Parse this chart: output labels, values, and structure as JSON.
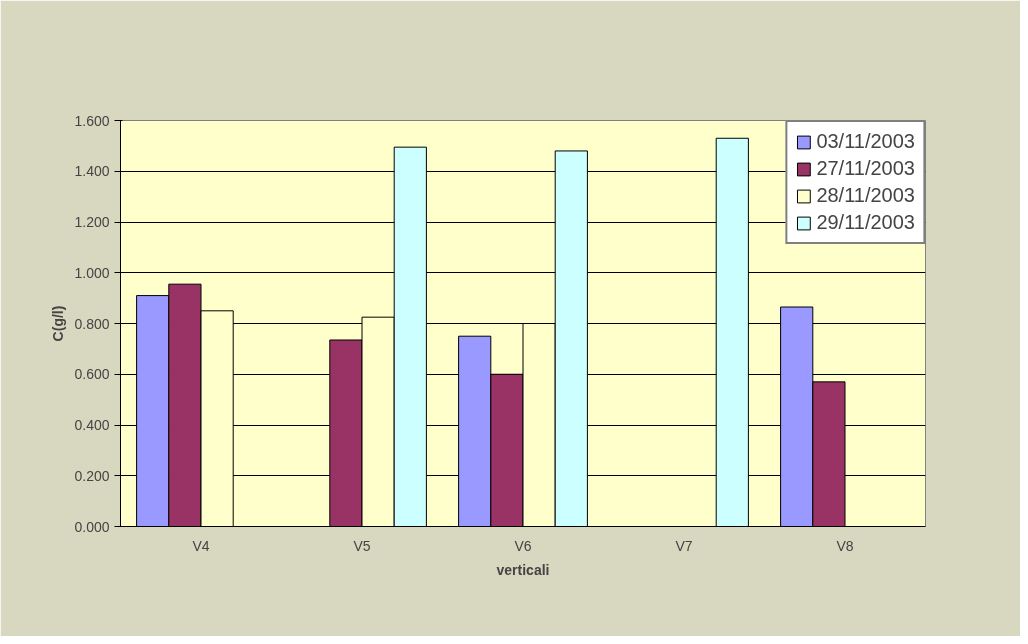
{
  "chart_data": {
    "type": "bar",
    "xlabel": "verticali",
    "ylabel": "C(g/l)",
    "categories": [
      "V4",
      "V5",
      "V6",
      "V7",
      "V8"
    ],
    "series": [
      {
        "name": "03/11/2003",
        "color": "#9999ff",
        "values": [
          0.91,
          null,
          0.75,
          null,
          0.865
        ]
      },
      {
        "name": "27/11/2003",
        "color": "#993366",
        "values": [
          0.955,
          0.735,
          0.6,
          null,
          0.57
        ]
      },
      {
        "name": "28/11/2003",
        "color": "#ffffcc",
        "values": [
          0.85,
          0.825,
          0.8,
          null,
          null
        ]
      },
      {
        "name": "29/11/2003",
        "color": "#ccffff",
        "values": [
          null,
          1.495,
          1.48,
          1.53,
          null
        ]
      }
    ],
    "ylim": [
      0,
      1.6
    ],
    "yticks": [
      {
        "value": 0,
        "label": "0.000"
      },
      {
        "value": 0.2,
        "label": "0.200"
      },
      {
        "value": 0.4,
        "label": "0.400"
      },
      {
        "value": 0.6,
        "label": "0.600"
      },
      {
        "value": 0.8,
        "label": "0.800"
      },
      {
        "value": 1.0,
        "label": "1.000"
      },
      {
        "value": 1.2,
        "label": "1.200"
      },
      {
        "value": 1.4,
        "label": "1.400"
      },
      {
        "value": 1.6,
        "label": "1.600"
      }
    ],
    "grid": "y",
    "legend": "top right"
  }
}
